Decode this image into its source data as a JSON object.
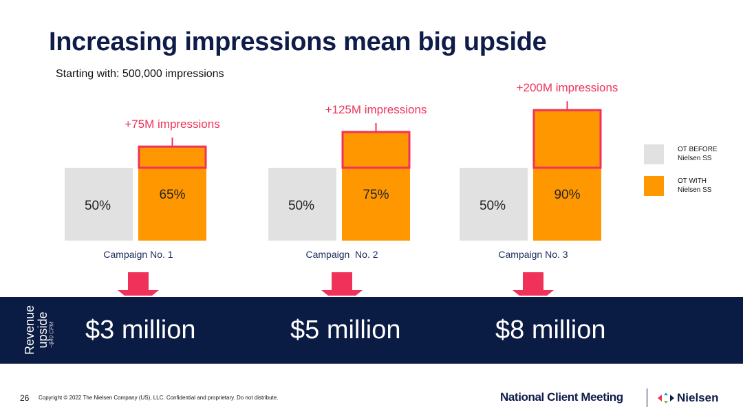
{
  "title": "Increasing impressions mean big upside",
  "subtitle": "Starting with: 500,000 impressions",
  "colors": {
    "navy": "#0b1c44",
    "title": "#0f1c4a",
    "grey": "#e1e1e1",
    "orange": "#ff9800",
    "pink": "#f0325a"
  },
  "chart_data": {
    "type": "bar",
    "categories": [
      "Campaign No. 1",
      "Campaign  No. 2",
      "Campaign No. 3"
    ],
    "series": [
      {
        "name": "OT BEFORE Nielsen SS",
        "values": [
          50,
          50,
          50
        ],
        "labels": [
          "50%",
          "50%",
          "50%"
        ],
        "color": "#e1e1e1"
      },
      {
        "name": "OT WITH Nielsen SS",
        "values": [
          65,
          75,
          90
        ],
        "labels": [
          "65%",
          "75%",
          "90%"
        ],
        "color": "#ff9800"
      }
    ],
    "annotations": [
      "+75M impressions",
      "+125M impressions",
      "+200M impressions"
    ],
    "ylim": [
      0,
      100
    ],
    "grid": false,
    "legend": "right"
  },
  "legend": [
    {
      "label": "OT BEFORE Nielsen SS",
      "color": "#e1e1e1"
    },
    {
      "label": "OT WITH Nielsen SS",
      "color": "#ff9800"
    }
  ],
  "revenue": {
    "label": "Revenue upside",
    "note": "~$40 CPM",
    "values": [
      "$3 million",
      "$5 million",
      "$8 million"
    ]
  },
  "footer": {
    "page": "26",
    "copyright": "Copyright © 2022 The Nielsen Company (US), LLC. Confidential and proprietary. Do not distribute.",
    "meeting": "National Client Meeting",
    "logo": "Nielsen",
    "logo_icon": "nielsen-logo-icon"
  }
}
